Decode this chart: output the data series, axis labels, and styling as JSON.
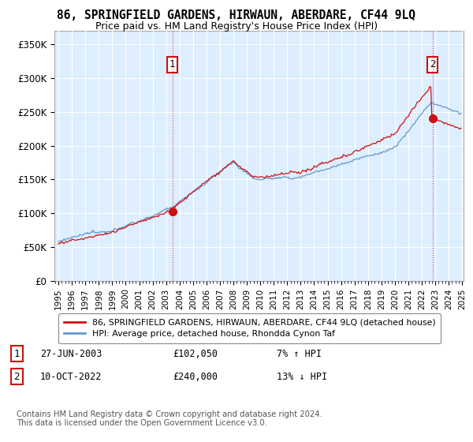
{
  "title": "86, SPRINGFIELD GARDENS, HIRWAUN, ABERDARE, CF44 9LQ",
  "subtitle": "Price paid vs. HM Land Registry's House Price Index (HPI)",
  "background_color": "#ffffff",
  "plot_bg_color": "#ddeeff",
  "grid_color": "#ffffff",
  "hpi_color": "#6699cc",
  "price_color": "#cc1111",
  "ylim": [
    0,
    370000
  ],
  "yticks": [
    0,
    50000,
    100000,
    150000,
    200000,
    250000,
    300000,
    350000
  ],
  "ytick_labels": [
    "£0",
    "£50K",
    "£100K",
    "£150K",
    "£200K",
    "£250K",
    "£300K",
    "£350K"
  ],
  "sale1_price": 102050,
  "sale2_price": 240000,
  "legend_line1": "86, SPRINGFIELD GARDENS, HIRWAUN, ABERDARE, CF44 9LQ (detached house)",
  "legend_line2": "HPI: Average price, detached house, Rhondda Cynon Taf",
  "table_row1": [
    "1",
    "27-JUN-2003",
    "£102,050",
    "7% ↑ HPI"
  ],
  "table_row2": [
    "2",
    "10-OCT-2022",
    "£240,000",
    "13% ↓ HPI"
  ],
  "footer": "Contains HM Land Registry data © Crown copyright and database right 2024.\nThis data is licensed under the Open Government Licence v3.0."
}
